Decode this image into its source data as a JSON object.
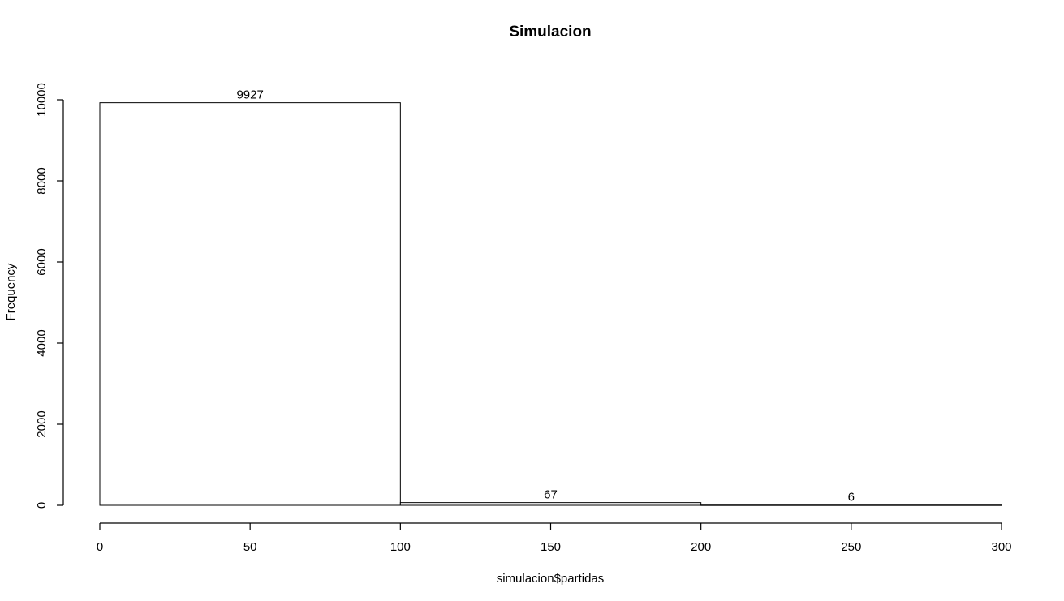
{
  "chart_data": {
    "type": "bar",
    "title": "Simulacion",
    "xlabel": "simulacion$partidas",
    "ylabel": "Frequency",
    "bins": [
      {
        "start": 0,
        "end": 100,
        "count": 9927,
        "label": "9927"
      },
      {
        "start": 100,
        "end": 200,
        "count": 67,
        "label": "67"
      },
      {
        "start": 200,
        "end": 300,
        "count": 6,
        "label": "6"
      }
    ],
    "xlim": [
      0,
      300
    ],
    "ylim": [
      0,
      10000
    ],
    "xticks": [
      0,
      50,
      100,
      150,
      200,
      250,
      300
    ],
    "yticks": [
      0,
      2000,
      4000,
      6000,
      8000,
      10000
    ],
    "grid": false,
    "legend": "none"
  }
}
